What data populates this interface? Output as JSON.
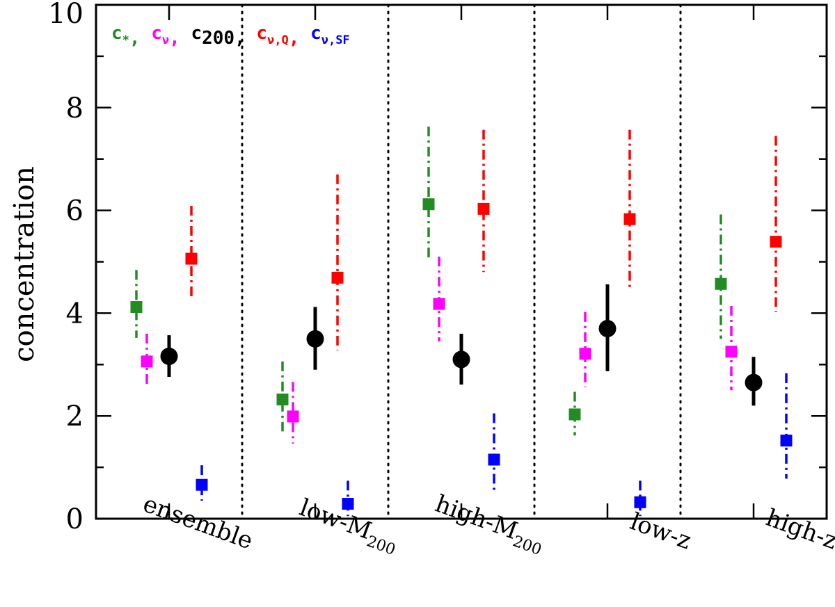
{
  "chart_data": {
    "type": "scatter",
    "title": "",
    "xlabel": "",
    "ylabel": "concentration",
    "ylim": [
      0,
      10
    ],
    "yticks_major": [
      0,
      2,
      4,
      6,
      8,
      10
    ],
    "yticks_minor": [
      1,
      3,
      5,
      7,
      9
    ],
    "categories": [
      {
        "label": "ensemble",
        "sub": ""
      },
      {
        "label": "low-M",
        "sub": "200"
      },
      {
        "label": "high-M",
        "sub": "200"
      },
      {
        "label": "low-z",
        "sub": ""
      },
      {
        "label": "high-z",
        "sub": ""
      }
    ],
    "series": [
      {
        "name": "c_*",
        "legend_main": "c",
        "legend_sub": "*",
        "color": "#228B22",
        "marker": "square",
        "errorbar": "dash-dot",
        "values": [
          4.12,
          2.32,
          6.12,
          2.03,
          4.57
        ],
        "err_low": [
          3.52,
          1.7,
          5.03,
          1.62,
          3.5
        ],
        "err_high": [
          4.84,
          3.06,
          7.63,
          2.47,
          5.92
        ]
      },
      {
        "name": "c_nu",
        "legend_main": "c",
        "legend_sub": "ν",
        "color": "#FF00FF",
        "marker": "square",
        "errorbar": "dash-dot",
        "values": [
          3.06,
          1.99,
          4.18,
          3.21,
          3.25
        ],
        "err_low": [
          2.58,
          1.46,
          3.45,
          2.56,
          2.5
        ],
        "err_high": [
          3.6,
          2.66,
          5.1,
          4.02,
          4.14
        ]
      },
      {
        "name": "c_200",
        "legend_main": "c",
        "legend_sub": "200",
        "color": "#000000",
        "marker": "circle",
        "errorbar": "solid",
        "values": [
          3.16,
          3.5,
          3.1,
          3.7,
          2.65
        ],
        "err_low": [
          2.76,
          2.9,
          2.61,
          2.87,
          2.2
        ],
        "err_high": [
          3.57,
          4.12,
          3.6,
          4.56,
          3.15
        ]
      },
      {
        "name": "c_nu,Q",
        "legend_main": "c",
        "legend_sub": "ν,Q",
        "color": "#FF0000",
        "marker": "square",
        "errorbar": "dash-dot",
        "values": [
          5.06,
          4.69,
          6.03,
          5.83,
          5.39
        ],
        "err_low": [
          4.3,
          3.28,
          4.8,
          4.5,
          4.02
        ],
        "err_high": [
          6.09,
          6.7,
          7.57,
          7.57,
          7.45
        ]
      },
      {
        "name": "c_nu,SF",
        "legend_main": "c",
        "legend_sub": "ν,SF",
        "color": "#0000FF",
        "marker": "square",
        "errorbar": "dash-dot",
        "values": [
          0.66,
          0.29,
          1.15,
          0.32,
          1.52
        ],
        "err_low": [
          0.35,
          0.05,
          0.55,
          0.05,
          0.78
        ],
        "err_high": [
          1.04,
          0.74,
          2.05,
          0.74,
          2.83
        ]
      }
    ],
    "separators": "dotted vertical lines between categories",
    "legend": "top-left"
  }
}
